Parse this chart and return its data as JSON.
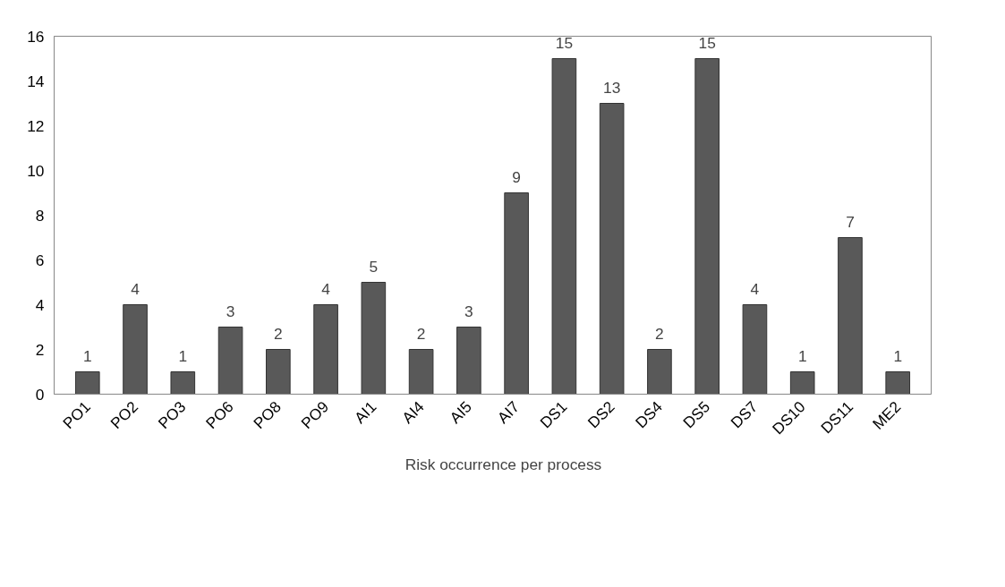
{
  "chart_data": {
    "type": "bar",
    "categories": [
      "PO1",
      "PO2",
      "PO3",
      "PO6",
      "PO8",
      "PO9",
      "AI1",
      "AI4",
      "AI5",
      "AI7",
      "DS1",
      "DS2",
      "DS4",
      "DS5",
      "DS7",
      "DS10",
      "DS11",
      "ME2"
    ],
    "series": [
      {
        "name": "Risk occurrence per process",
        "color": "#595959",
        "values": [
          1,
          4,
          1,
          3,
          2,
          4,
          5,
          2,
          3,
          9,
          15,
          13,
          2,
          15,
          4,
          1,
          7,
          1
        ]
      }
    ],
    "ylim": [
      0,
      16
    ],
    "yticks": [
      0,
      2,
      4,
      6,
      8,
      10,
      12,
      14,
      16
    ],
    "grid": false,
    "data_labels": true,
    "legend": "bottom"
  }
}
